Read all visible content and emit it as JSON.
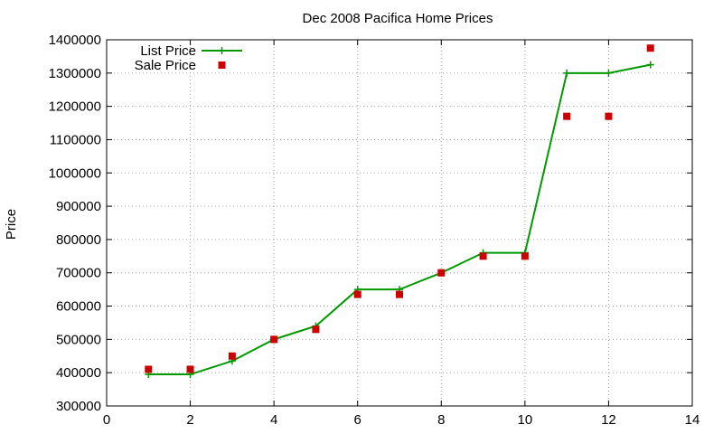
{
  "chart_data": {
    "type": "line",
    "title": "Dec 2008 Pacifica Home Prices",
    "xlabel": "",
    "ylabel": "Price",
    "xlim": [
      0,
      14
    ],
    "ylim": [
      300000,
      1400000
    ],
    "x_ticks": [
      "0",
      "2",
      "4",
      "6",
      "8",
      "10",
      "12",
      "14"
    ],
    "y_ticks": [
      "300000",
      "400000",
      "500000",
      "600000",
      "700000",
      "800000",
      "900000",
      "1000000",
      "1100000",
      "1200000",
      "1300000",
      "1400000"
    ],
    "grid": true,
    "legend_position": "top-left",
    "series": [
      {
        "name": "List Price",
        "style": "lines+points",
        "marker": "plus",
        "color": "#009900",
        "x": [
          1,
          2,
          3,
          4,
          5,
          6,
          7,
          8,
          9,
          10,
          11,
          12,
          13
        ],
        "y": [
          395000,
          395000,
          435000,
          500000,
          540000,
          650000,
          650000,
          700000,
          760000,
          760000,
          1300000,
          1300000,
          1325000
        ]
      },
      {
        "name": "Sale Price",
        "style": "points",
        "marker": "square",
        "color": "#cc0000",
        "x": [
          1,
          2,
          3,
          4,
          5,
          6,
          7,
          8,
          9,
          10,
          11,
          12,
          13
        ],
        "y": [
          410000,
          410000,
          450000,
          500000,
          530000,
          635000,
          635000,
          700000,
          750000,
          750000,
          1170000,
          1170000,
          1375000
        ]
      }
    ]
  }
}
